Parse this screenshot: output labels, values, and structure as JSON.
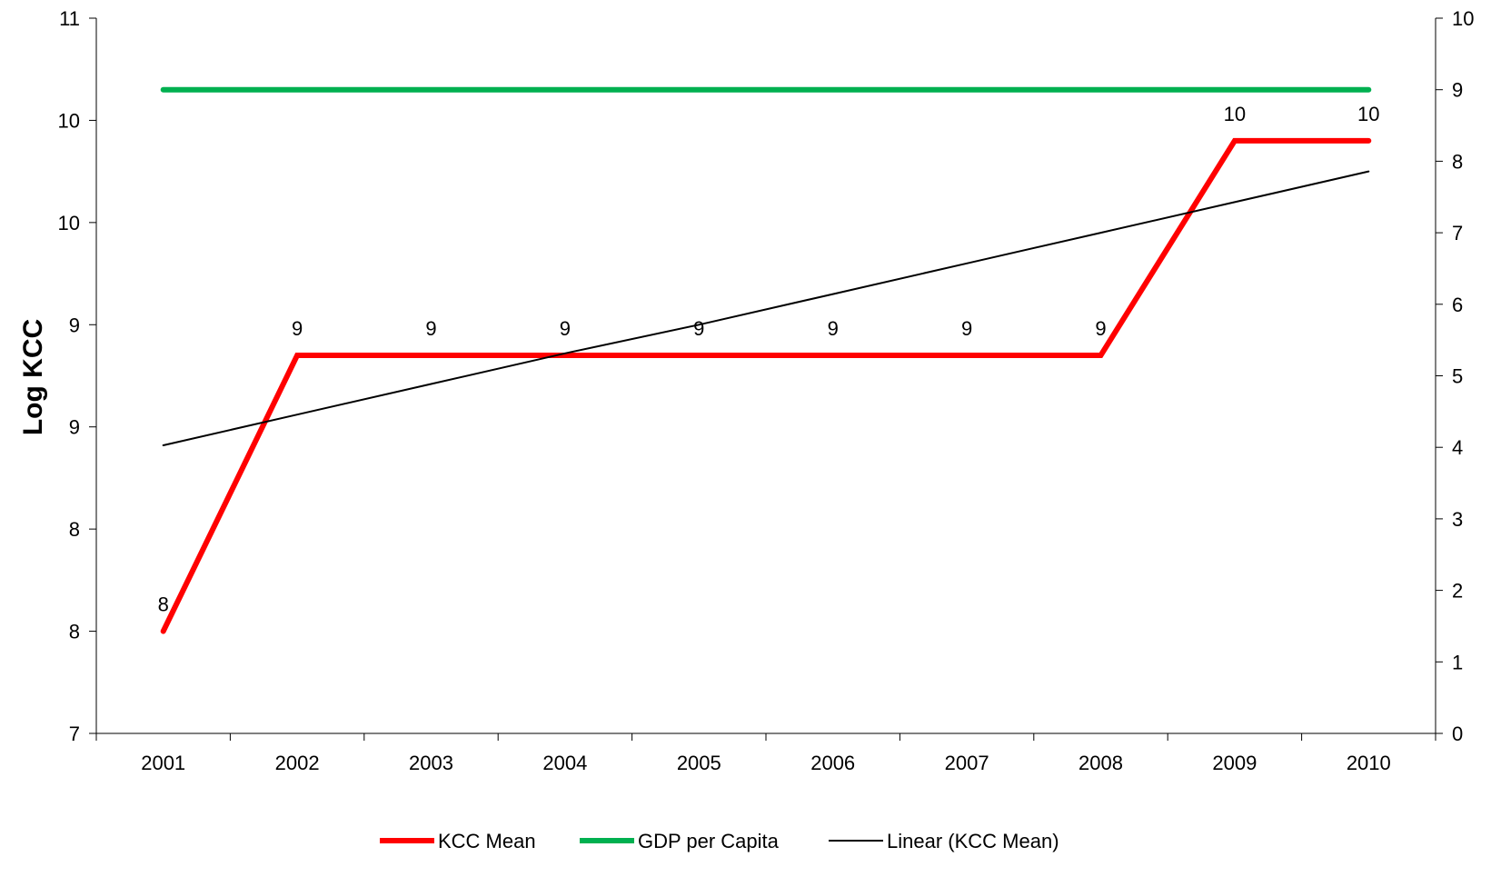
{
  "chart_data": {
    "type": "line",
    "ylabel": "Log KCC",
    "x": [
      "2001",
      "2002",
      "2003",
      "2004",
      "2005",
      "2006",
      "2007",
      "2008",
      "2009",
      "2010"
    ],
    "y_left_tick_labels": [
      "7",
      "8",
      "8",
      "9",
      "9",
      "10",
      "10",
      "11"
    ],
    "y_left_range": [
      7.0,
      10.5
    ],
    "y_right_tick_labels": [
      "0",
      "1",
      "2",
      "3",
      "4",
      "5",
      "6",
      "7",
      "8",
      "9",
      "10"
    ],
    "y_right_range": [
      0,
      10
    ],
    "series": [
      {
        "name": "KCC Mean",
        "color": "#ff0000",
        "axis": "left",
        "values": [
          7.5,
          8.85,
          8.85,
          8.85,
          8.85,
          8.85,
          8.85,
          8.85,
          9.9,
          9.9
        ],
        "data_labels": [
          "8",
          "9",
          "9",
          "9",
          "9",
          "9",
          "9",
          "9",
          "10",
          "10"
        ]
      },
      {
        "name": "GDP per Capita",
        "color": "#00b050",
        "axis": "right",
        "values": [
          9,
          9,
          9,
          9,
          9,
          9,
          9,
          9,
          9,
          9
        ]
      },
      {
        "name": "Linear (KCC Mean)",
        "color": "#000000",
        "axis": "left",
        "trendline_of": "KCC Mean",
        "values": [
          8.41,
          8.56,
          8.71,
          8.86,
          9.0,
          9.15,
          9.3,
          9.45,
          9.6,
          9.75
        ]
      }
    ],
    "grid": false,
    "legend_position": "bottom"
  }
}
